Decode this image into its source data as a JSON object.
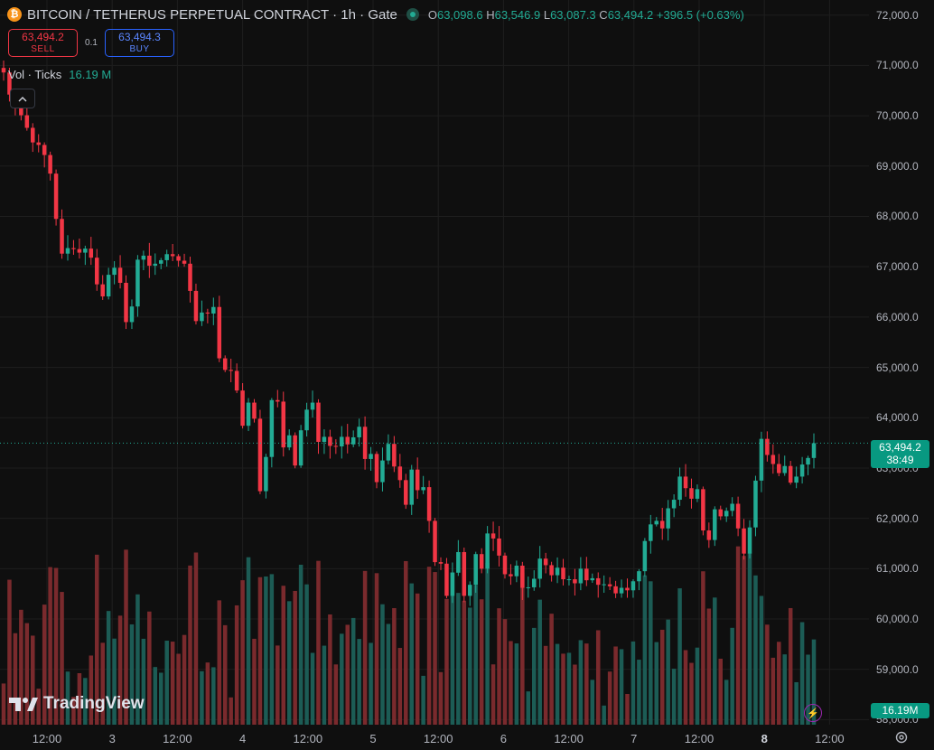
{
  "legend": {
    "coin_icon": "bitcoin-icon",
    "symbol": "BITCOIN / TETHERUS PERPETUAL CONTRACT",
    "interval": "1h",
    "exchange": "Gate",
    "open_label": "O",
    "open": "63,098.6",
    "high_label": "H",
    "high": "63,546.9",
    "low_label": "L",
    "low": "63,087.3",
    "close_label": "C",
    "close": "63,494.2",
    "change": "+396.5 (+0.63%)"
  },
  "trade": {
    "sell_price": "63,494.2",
    "sell_label": "SELL",
    "spread": "0.1",
    "buy_price": "63,494.3",
    "buy_label": "BUY"
  },
  "volume_legend": {
    "label": "Vol · Ticks",
    "value": "16.19 M"
  },
  "price_axis": {
    "ticks": [
      "72,000.0",
      "71,000.0",
      "70,000.0",
      "69,000.0",
      "68,000.0",
      "67,000.0",
      "66,000.0",
      "65,000.0",
      "64,000.0",
      "63,000.0",
      "62,000.0",
      "61,000.0",
      "60,000.0",
      "59,000.0",
      "58,000.0"
    ],
    "last_price": "63,494.2",
    "countdown": "38:49",
    "volume_label": "16.19M"
  },
  "time_axis": [
    {
      "label": "12:00",
      "bold": false
    },
    {
      "label": "3",
      "bold": false
    },
    {
      "label": "12:00",
      "bold": false
    },
    {
      "label": "4",
      "bold": false
    },
    {
      "label": "12:00",
      "bold": false
    },
    {
      "label": "5",
      "bold": false
    },
    {
      "label": "12:00",
      "bold": false
    },
    {
      "label": "6",
      "bold": false
    },
    {
      "label": "12:00",
      "bold": false
    },
    {
      "label": "7",
      "bold": false
    },
    {
      "label": "12:00",
      "bold": false
    },
    {
      "label": "8",
      "bold": true
    },
    {
      "label": "12:00",
      "bold": false
    }
  ],
  "branding": {
    "logo_text": "TradingView"
  },
  "colors": {
    "up": "#22ab94",
    "down": "#f23645",
    "vol_up": "#1c5c55",
    "vol_down": "#7a2a2d",
    "grid": "#1e1e1e"
  },
  "chart_data": {
    "type": "candlestick",
    "interval": "1h",
    "ylim": [
      57900,
      72300
    ],
    "closes": [
      70860,
      70420,
      70240,
      70010,
      69760,
      69470,
      69420,
      69220,
      68850,
      67950,
      67260,
      67370,
      67350,
      67280,
      67360,
      67180,
      66650,
      66410,
      66840,
      66980,
      66680,
      65900,
      66210,
      67140,
      67220,
      67020,
      67060,
      67130,
      67250,
      67210,
      67120,
      67060,
      66520,
      65920,
      66090,
      66070,
      66200,
      65180,
      64950,
      64930,
      64540,
      63840,
      64300,
      63980,
      62540,
      63220,
      64350,
      64320,
      63410,
      63650,
      63050,
      63750,
      64160,
      64300,
      63520,
      63620,
      63440,
      63430,
      63620,
      63470,
      63610,
      63820,
      63180,
      63280,
      62720,
      63150,
      63480,
      63030,
      62760,
      62270,
      62970,
      62560,
      62620,
      61950,
      61130,
      61100,
      60460,
      60920,
      61330,
      60460,
      60680,
      61290,
      61000,
      61700,
      61600,
      61260,
      60890,
      60850,
      61060,
      60620,
      60630,
      60800,
      61200,
      61070,
      60870,
      61020,
      60790,
      60790,
      60710,
      61000,
      60770,
      60810,
      60680,
      60690,
      60650,
      60510,
      60620,
      60570,
      60750,
      60950,
      61550,
      61880,
      61950,
      61800,
      62200,
      62370,
      62830,
      62600,
      62390,
      62580,
      61760,
      61570,
      62180,
      62040,
      62150,
      62290,
      61800,
      61300,
      61820,
      62750,
      63580,
      63260,
      63080,
      62900,
      63040,
      62710,
      62830,
      63070,
      63200,
      63494
    ],
    "volume_note": "relative volume bars per candle, values not printed"
  }
}
